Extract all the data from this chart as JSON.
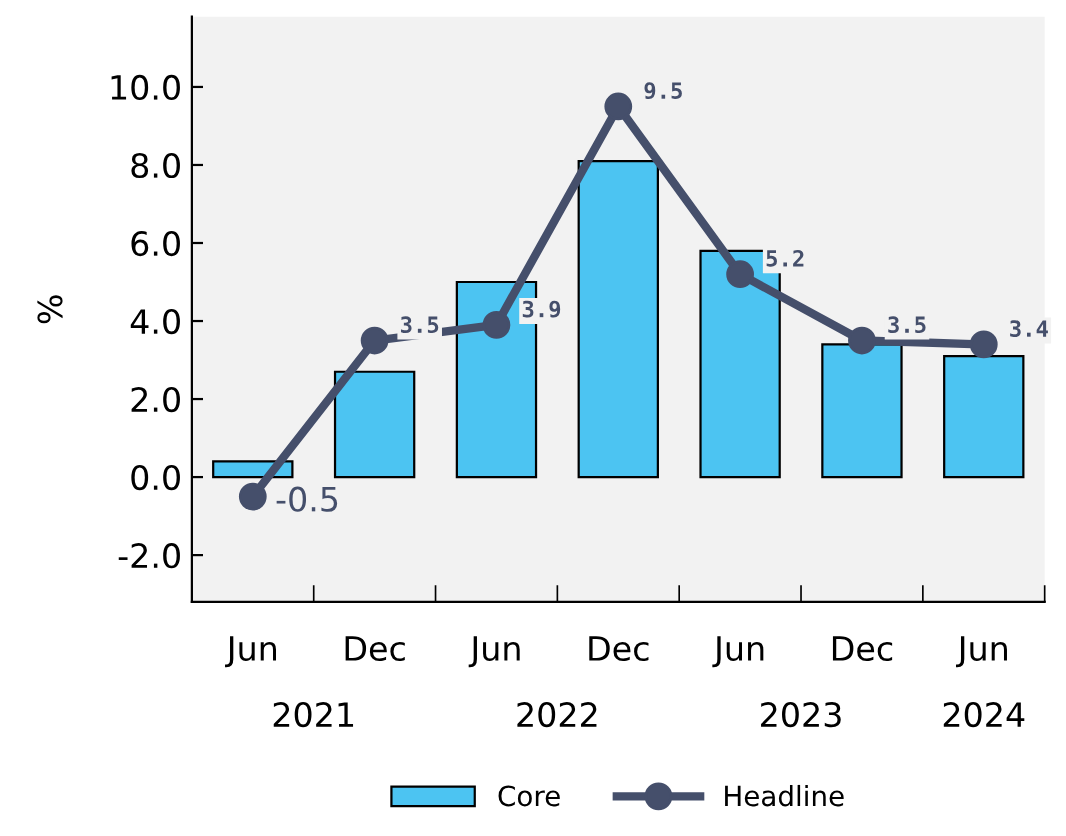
{
  "chart_data": {
    "type": "bar",
    "ylabel": "%",
    "categories": [
      "Jun",
      "Dec",
      "Jun",
      "Dec",
      "Jun",
      "Dec",
      "Jun"
    ],
    "annotations": [
      "2021",
      "2022",
      "2023",
      "2024"
    ],
    "series": [
      {
        "name": "Core",
        "color": "#4cc4f2",
        "values": [
          0.4,
          2.7,
          5.0,
          8.1,
          5.8,
          3.4,
          3.1
        ]
      },
      {
        "name": "Headline",
        "type": "line",
        "color": "#454f6b",
        "values": [
          -0.5,
          3.5,
          3.9,
          9.5,
          5.2,
          3.5,
          3.4
        ],
        "value_labels": [
          "-0.5",
          "3.5",
          "3.9",
          "9.5",
          "5.2",
          "3.5",
          "3.4"
        ]
      }
    ],
    "ylim": [
      -3.2,
      11.8
    ],
    "yticks": [
      {
        "value": -2,
        "label": "-2.0"
      },
      {
        "value": 0,
        "label": "0.0"
      },
      {
        "value": 2,
        "label": "2.0"
      },
      {
        "value": 4,
        "label": "4.0"
      },
      {
        "value": 6,
        "label": "6.0"
      },
      {
        "value": 8,
        "label": "8.0"
      },
      {
        "value": 10,
        "label": "10.0"
      }
    ],
    "marker": "circle",
    "line_style": "solid",
    "grid": false,
    "legend": "bottom"
  }
}
